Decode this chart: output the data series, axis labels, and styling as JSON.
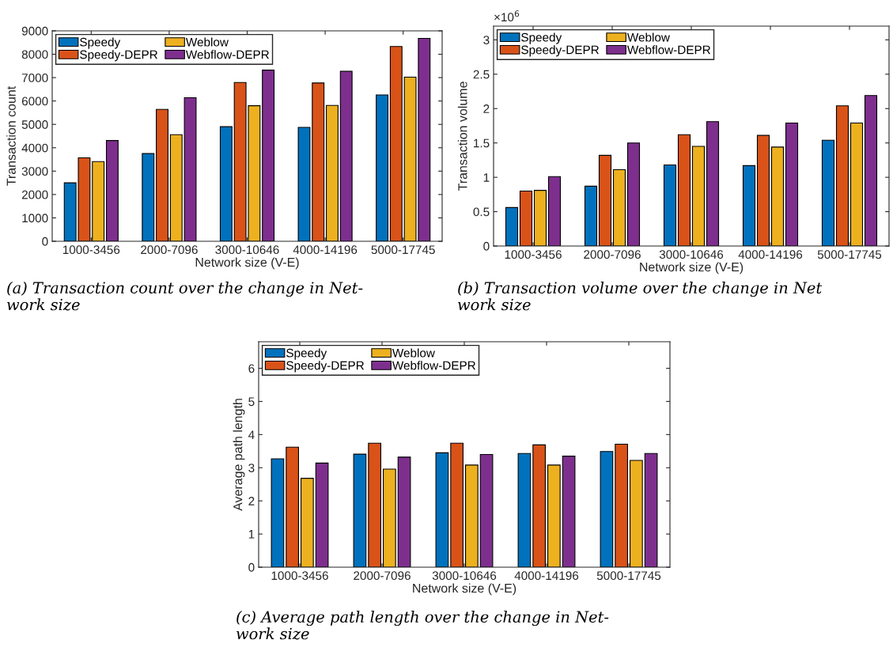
{
  "chart_data": [
    {
      "type": "bar",
      "categories": [
        "1000-3456",
        "2000-7096",
        "3000-10646",
        "4000-14196",
        "5000-17745"
      ],
      "xlabel": "Network size (V-E)",
      "ylabel": "Transaction count",
      "ylim": [
        0,
        9000
      ],
      "yticks": [
        0,
        1000,
        2000,
        3000,
        4000,
        5000,
        6000,
        7000,
        8000,
        9000
      ],
      "legend": "top left",
      "grid": false,
      "series": [
        {
          "name": "Speedy",
          "color": "#0072bd",
          "values": [
            2500,
            3750,
            4900,
            4870,
            6260
          ]
        },
        {
          "name": "Speedy-DEPR",
          "color": "#d95319",
          "values": [
            3570,
            5640,
            6790,
            6770,
            8330
          ]
        },
        {
          "name": "Weblow",
          "color": "#edb120",
          "values": [
            3410,
            4560,
            5800,
            5810,
            7020
          ]
        },
        {
          "name": "Webflow-DEPR",
          "color": "#7e2f8e",
          "values": [
            4310,
            6140,
            7320,
            7270,
            8680
          ]
        }
      ],
      "annotations": [
        "(a) Transaction count over the change in Net-\nwork size"
      ]
    },
    {
      "type": "bar",
      "categories": [
        "1000-3456",
        "2000-7096",
        "3000-10646",
        "4000-14196",
        "5000-17745"
      ],
      "xlabel": "Network size (V-E)",
      "ylabel": "Transaction volume",
      "ylim": [
        0,
        3.2
      ],
      "yticks": [
        0,
        0.5,
        1,
        1.5,
        2,
        2.5,
        3
      ],
      "legend": "top left",
      "grid": false,
      "series": [
        {
          "name": "Speedy",
          "color": "#0072bd",
          "values": [
            0.56,
            0.87,
            1.18,
            1.17,
            1.54
          ]
        },
        {
          "name": "Speedy-DEPR",
          "color": "#d95319",
          "values": [
            0.8,
            1.32,
            1.62,
            1.61,
            2.04
          ]
        },
        {
          "name": "Weblow",
          "color": "#edb120",
          "values": [
            0.81,
            1.11,
            1.45,
            1.44,
            1.79
          ]
        },
        {
          "name": "Webflow-DEPR",
          "color": "#7e2f8e",
          "values": [
            1.01,
            1.5,
            1.81,
            1.79,
            2.19
          ]
        }
      ],
      "annotations": [
        "×10$^{6}$",
        "(b) Transaction volume over the change in Net\nwork size"
      ]
    },
    {
      "type": "bar",
      "categories": [
        "1000-3456",
        "2000-7096",
        "3000-10646",
        "4000-14196",
        "5000-17745"
      ],
      "xlabel": "Network size (V-E)",
      "ylabel": "Average path length",
      "ylim": [
        0,
        6.8
      ],
      "yticks": [
        0,
        1,
        2,
        3,
        4,
        5,
        6
      ],
      "legend": "top left",
      "grid": false,
      "series": [
        {
          "name": "Speedy",
          "color": "#0072bd",
          "values": [
            3.27,
            3.41,
            3.45,
            3.43,
            3.49
          ]
        },
        {
          "name": "Speedy-DEPR",
          "color": "#d95319",
          "values": [
            3.62,
            3.74,
            3.74,
            3.69,
            3.71
          ]
        },
        {
          "name": "Weblow",
          "color": "#edb120",
          "values": [
            2.68,
            2.96,
            3.08,
            3.08,
            3.22
          ]
        },
        {
          "name": "Webflow-DEPR",
          "color": "#7e2f8e",
          "values": [
            3.14,
            3.32,
            3.4,
            3.35,
            3.43
          ]
        }
      ],
      "annotations": [
        "(c) Average path length over the change in Net-\nwork size"
      ]
    }
  ]
}
